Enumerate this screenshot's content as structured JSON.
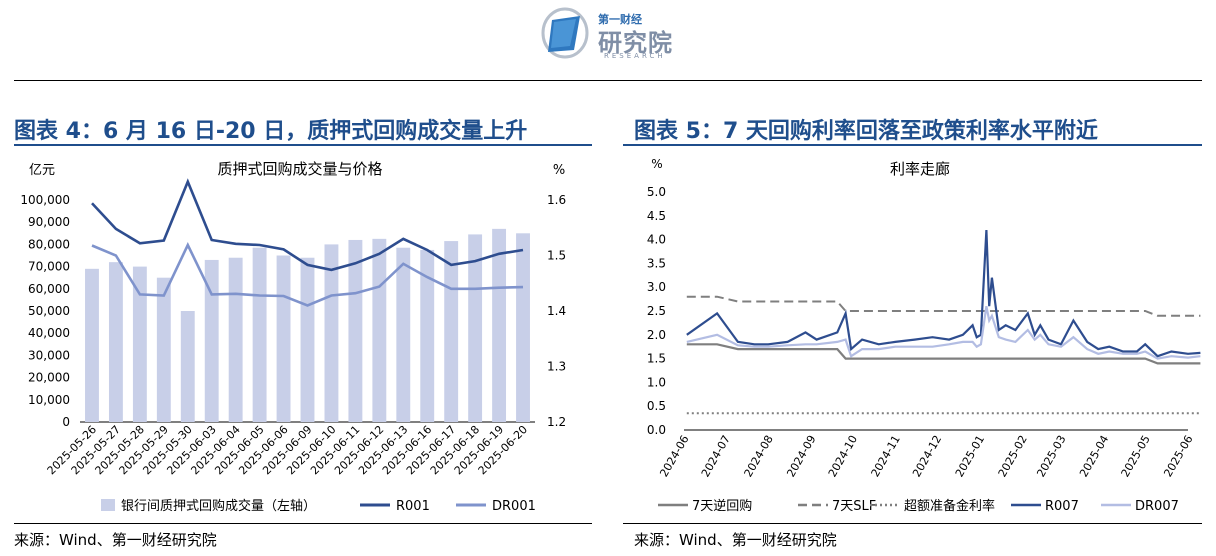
{
  "header": {
    "logo_small": "第一财经",
    "logo_big": "研究院",
    "logo_en": "RESEARCH"
  },
  "left_panel": {
    "title": "图表 4：6 月 16 日-20 日，质押式回购成交量上升",
    "source": "来源：Wind、第一财经研究院"
  },
  "right_panel": {
    "title": "图表 5：7 天回购利率回落至政策利率水平附近",
    "source": "来源：Wind、第一财经研究院"
  },
  "chart_data": [
    {
      "type": "bar",
      "title": "质押式回购成交量与价格",
      "ylabel": "亿元",
      "y2label": "%",
      "ylim": [
        0,
        100000
      ],
      "y2lim": [
        1.2,
        1.6
      ],
      "yticks": [
        "0",
        "10,000",
        "20,000",
        "30,000",
        "40,000",
        "50,000",
        "60,000",
        "70,000",
        "80,000",
        "90,000",
        "100,000"
      ],
      "y2ticks": [
        "1.2",
        "1.3",
        "1.4",
        "1.5",
        "1.6"
      ],
      "categories": [
        "2025-05-26",
        "2025-05-27",
        "2025-05-28",
        "2025-05-29",
        "2025-05-30",
        "2025-06-03",
        "2025-06-04",
        "2025-06-05",
        "2025-06-06",
        "2025-06-09",
        "2025-06-10",
        "2025-06-11",
        "2025-06-12",
        "2025-06-13",
        "2025-06-16",
        "2025-06-17",
        "2025-06-18",
        "2025-06-19",
        "2025-06-20"
      ],
      "series": [
        {
          "name": "银行间质押式回购成交量（左轴）",
          "axis": "left",
          "kind": "bar",
          "color": "#c8cfe8",
          "values": [
            69000,
            72000,
            70000,
            65000,
            50000,
            73000,
            74000,
            78500,
            75000,
            74000,
            80000,
            82000,
            82500,
            78500,
            77500,
            81500,
            84500,
            87000,
            85000
          ]
        },
        {
          "name": "R001",
          "axis": "right",
          "kind": "line",
          "color": "#2e4d8f",
          "values": [
            1.594,
            1.548,
            1.522,
            1.527,
            1.633,
            1.528,
            1.521,
            1.519,
            1.511,
            1.483,
            1.474,
            1.486,
            1.503,
            1.53,
            1.51,
            1.483,
            1.49,
            1.503,
            1.51
          ]
        },
        {
          "name": "DR001",
          "axis": "right",
          "kind": "line",
          "color": "#7f93cc",
          "values": [
            1.518,
            1.5,
            1.43,
            1.428,
            1.519,
            1.43,
            1.431,
            1.428,
            1.427,
            1.41,
            1.428,
            1.432,
            1.444,
            1.485,
            1.461,
            1.44,
            1.44,
            1.442,
            1.443
          ]
        }
      ],
      "legend": "bottom"
    },
    {
      "type": "line",
      "title": "利率走廊",
      "ylabel": "%",
      "ylim": [
        0,
        5
      ],
      "yticks": [
        "0.0",
        "0.5",
        "1.0",
        "1.5",
        "2.0",
        "2.5",
        "3.0",
        "3.5",
        "4.0",
        "4.5",
        "5.0"
      ],
      "x_ticks": [
        "2024-06",
        "2024-07",
        "2024-08",
        "2024-09",
        "2024-10",
        "2024-11",
        "2024-12",
        "2025-01",
        "2025-02",
        "2025-03",
        "2025-04",
        "2025-05",
        "2025-06"
      ],
      "x": [
        "2024-06-03",
        "2024-06-25",
        "2024-07-10",
        "2024-07-22",
        "2024-08-01",
        "2024-08-15",
        "2024-08-28",
        "2024-09-05",
        "2024-09-20",
        "2024-09-26",
        "2024-09-30",
        "2024-10-08",
        "2024-10-20",
        "2024-11-01",
        "2024-11-15",
        "2024-11-28",
        "2024-12-10",
        "2024-12-20",
        "2024-12-27",
        "2024-12-30",
        "2025-01-02",
        "2025-01-06",
        "2025-01-08",
        "2025-01-10",
        "2025-01-15",
        "2025-01-20",
        "2025-01-27",
        "2025-02-05",
        "2025-02-10",
        "2025-02-14",
        "2025-02-20",
        "2025-03-01",
        "2025-03-10",
        "2025-03-20",
        "2025-03-28",
        "2025-04-05",
        "2025-04-15",
        "2025-04-25",
        "2025-05-01",
        "2025-05-10",
        "2025-05-20",
        "2025-06-01",
        "2025-06-10"
      ],
      "series": [
        {
          "name": "7天逆回购",
          "style": "solid",
          "color": "#7f7f7f",
          "values": [
            1.8,
            1.8,
            1.7,
            1.7,
            1.7,
            1.7,
            1.7,
            1.7,
            1.7,
            1.5,
            1.5,
            1.5,
            1.5,
            1.5,
            1.5,
            1.5,
            1.5,
            1.5,
            1.5,
            1.5,
            1.5,
            1.5,
            1.5,
            1.5,
            1.5,
            1.5,
            1.5,
            1.5,
            1.5,
            1.5,
            1.5,
            1.5,
            1.5,
            1.5,
            1.5,
            1.5,
            1.5,
            1.5,
            1.5,
            1.4,
            1.4,
            1.4,
            1.4
          ]
        },
        {
          "name": "7天SLF",
          "style": "dashed",
          "color": "#7f7f7f",
          "values": [
            2.8,
            2.8,
            2.7,
            2.7,
            2.7,
            2.7,
            2.7,
            2.7,
            2.7,
            2.5,
            2.5,
            2.5,
            2.5,
            2.5,
            2.5,
            2.5,
            2.5,
            2.5,
            2.5,
            2.5,
            2.5,
            2.5,
            2.5,
            2.5,
            2.5,
            2.5,
            2.5,
            2.5,
            2.5,
            2.5,
            2.5,
            2.5,
            2.5,
            2.5,
            2.5,
            2.5,
            2.5,
            2.5,
            2.5,
            2.4,
            2.4,
            2.4,
            2.4
          ]
        },
        {
          "name": "超额准备金利率",
          "style": "dotted",
          "color": "#7f7f7f",
          "values": [
            0.35,
            0.35,
            0.35,
            0.35,
            0.35,
            0.35,
            0.35,
            0.35,
            0.35,
            0.35,
            0.35,
            0.35,
            0.35,
            0.35,
            0.35,
            0.35,
            0.35,
            0.35,
            0.35,
            0.35,
            0.35,
            0.35,
            0.35,
            0.35,
            0.35,
            0.35,
            0.35,
            0.35,
            0.35,
            0.35,
            0.35,
            0.35,
            0.35,
            0.35,
            0.35,
            0.35,
            0.35,
            0.35,
            0.35,
            0.35,
            0.35,
            0.35,
            0.35
          ]
        },
        {
          "name": "R007",
          "style": "solid",
          "color": "#2e4d8f",
          "values": [
            2.0,
            2.45,
            1.85,
            1.8,
            1.8,
            1.85,
            2.05,
            1.9,
            2.05,
            2.45,
            1.7,
            1.9,
            1.8,
            1.85,
            1.9,
            1.95,
            1.9,
            2.0,
            2.2,
            1.95,
            2.0,
            4.2,
            2.6,
            3.2,
            2.1,
            2.2,
            2.1,
            2.45,
            2.0,
            2.2,
            1.9,
            1.8,
            2.3,
            1.85,
            1.7,
            1.75,
            1.65,
            1.65,
            1.8,
            1.55,
            1.65,
            1.6,
            1.62
          ]
        },
        {
          "name": "DR007",
          "style": "solid",
          "color": "#b3bde3",
          "values": [
            1.85,
            2.0,
            1.78,
            1.75,
            1.75,
            1.78,
            1.8,
            1.8,
            1.85,
            1.9,
            1.55,
            1.7,
            1.7,
            1.75,
            1.75,
            1.75,
            1.8,
            1.85,
            1.85,
            1.75,
            1.8,
            2.6,
            2.3,
            2.4,
            1.95,
            1.9,
            1.85,
            2.1,
            1.9,
            2.0,
            1.8,
            1.75,
            1.95,
            1.7,
            1.6,
            1.65,
            1.6,
            1.6,
            1.65,
            1.5,
            1.55,
            1.52,
            1.55
          ]
        }
      ],
      "legend": "bottom"
    }
  ]
}
